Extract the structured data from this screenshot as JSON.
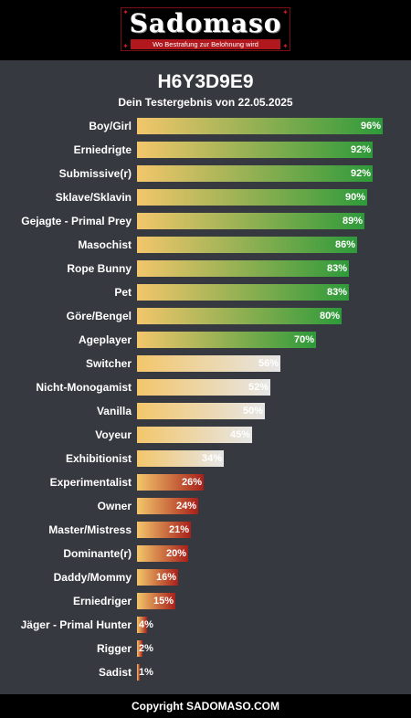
{
  "header": {
    "logo_text": "Sadomaso",
    "logo_tagline": "Wo Bestrafung zur Belohnung wird"
  },
  "result": {
    "code": "H6Y3D9E9",
    "subtitle": "Dein Testergebnis von 22.05.2025"
  },
  "colors": {
    "background": "#36393f",
    "bar_start": "#f3c66b",
    "high_end": "#2e9a3a",
    "mid_end": "#e6e6e6",
    "low_end": "#a8201a"
  },
  "chart_data": {
    "type": "bar",
    "orientation": "horizontal",
    "categories": [
      "Boy/Girl",
      "Erniedrigte",
      "Submissive(r)",
      "Sklave/Sklavin",
      "Gejagte - Primal Prey",
      "Masochist",
      "Rope Bunny",
      "Pet",
      "Göre/Bengel",
      "Ageplayer",
      "Switcher",
      "Nicht-Monogamist",
      "Vanilla",
      "Voyeur",
      "Exhibitionist",
      "Experimentalist",
      "Owner",
      "Master/Mistress",
      "Dominante(r)",
      "Daddy/Mommy",
      "Erniedriger",
      "Jäger - Primal Hunter",
      "Rigger",
      "Sadist"
    ],
    "values": [
      96,
      92,
      92,
      90,
      89,
      86,
      83,
      83,
      80,
      70,
      56,
      52,
      50,
      45,
      34,
      26,
      24,
      21,
      20,
      16,
      15,
      4,
      2,
      1
    ],
    "labels": [
      "96%",
      "92%",
      "92%",
      "90%",
      "89%",
      "86%",
      "83%",
      "83%",
      "80%",
      "70%",
      "56%",
      "52%",
      "50%",
      "45%",
      "34%",
      "26%",
      "24%",
      "21%",
      "20%",
      "16%",
      "15%",
      "4%",
      "2%",
      "1%"
    ],
    "xlim": [
      0,
      100
    ],
    "grid": false
  },
  "footer": {
    "copyright": "Copyright SADOMASO.COM"
  }
}
